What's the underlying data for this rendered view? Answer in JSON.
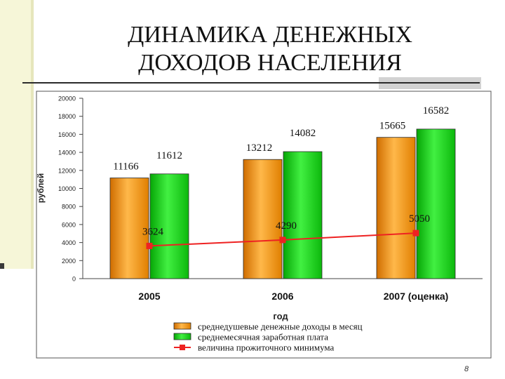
{
  "slide": {
    "title_line1": "ДИНАМИКА ДЕНЕЖНЫХ",
    "title_line2": "ДОХОДОВ НАСЕЛЕНИЯ",
    "page_number": "8"
  },
  "colors": {
    "income": "#f59a0f",
    "wage": "#1fd11f",
    "subsistence": "#ee2222"
  },
  "chart_data": {
    "type": "bar",
    "categories": [
      "2005",
      "2006",
      "2007 (оценка)"
    ],
    "series": [
      {
        "name": "среднедушевые денежные доходы в месяц",
        "kind": "bar",
        "values": [
          11166,
          13212,
          15665
        ],
        "labels": [
          "11166",
          "13212",
          "15665"
        ]
      },
      {
        "name": "среднемесячная заработная плата",
        "kind": "bar",
        "values": [
          11612,
          14082,
          16582
        ],
        "labels": [
          "11612",
          "14082",
          "16582"
        ]
      },
      {
        "name": "величина прожиточного минимума",
        "kind": "line",
        "values": [
          3624,
          4290,
          5050
        ],
        "labels": [
          "3624",
          "4290",
          "5050"
        ]
      }
    ],
    "ylabel": "рублей",
    "xlabel": "год",
    "ylim": [
      0,
      20000
    ],
    "yticks": [
      "0",
      "2000",
      "4000",
      "6000",
      "8000",
      "10000",
      "12000",
      "14000",
      "16000",
      "18000",
      "20000"
    ],
    "grid": false,
    "legend": "bottom"
  }
}
